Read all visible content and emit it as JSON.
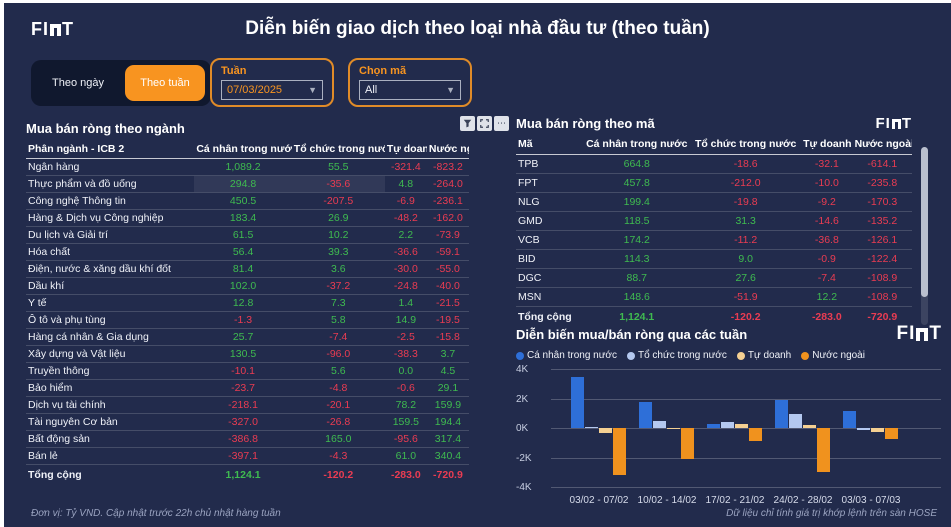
{
  "header": {
    "logo": "FIDT",
    "logo_left": "FI",
    "logo_right": "T",
    "title": "Diễn biến giao dịch theo loại nhà đầu tư (theo tuần)"
  },
  "controls": {
    "toggle_day": "Theo ngày",
    "toggle_week": "Theo tuần",
    "week_filter": {
      "label": "Tuần",
      "value": "07/03/2025"
    },
    "ticker_filter": {
      "label": "Chọn mã",
      "value": "All"
    }
  },
  "toolbar_icons": [
    "filter-icon",
    "focus-mode-icon",
    "more-options-icon"
  ],
  "sector_table": {
    "title": "Mua bán ròng theo ngành",
    "columns": [
      "Phân ngành - ICB 2",
      "Cá nhân trong nước",
      "Tổ chức trong nước",
      "Tự doanh",
      "Nước ngoài"
    ],
    "highlight_row_index": 1,
    "rows": [
      [
        "Ngân hàng",
        "1,089.2",
        "55.5",
        "-321.4",
        "-823.2"
      ],
      [
        "Thực phẩm và đồ uống",
        "294.8",
        "-35.6",
        "4.8",
        "-264.0"
      ],
      [
        "Công nghệ Thông tin",
        "450.5",
        "-207.5",
        "-6.9",
        "-236.1"
      ],
      [
        "Hàng & Dịch vụ Công nghiệp",
        "183.4",
        "26.9",
        "-48.2",
        "-162.0"
      ],
      [
        "Du lịch và Giải trí",
        "61.5",
        "10.2",
        "2.2",
        "-73.9"
      ],
      [
        "Hóa chất",
        "56.4",
        "39.3",
        "-36.6",
        "-59.1"
      ],
      [
        "Điện, nước & xăng dầu khí đốt",
        "81.4",
        "3.6",
        "-30.0",
        "-55.0"
      ],
      [
        "Dầu khí",
        "102.0",
        "-37.2",
        "-24.8",
        "-40.0"
      ],
      [
        "Y tế",
        "12.8",
        "7.3",
        "1.4",
        "-21.5"
      ],
      [
        "Ô tô và phụ tùng",
        "-1.3",
        "5.8",
        "14.9",
        "-19.5"
      ],
      [
        "Hàng cá nhân & Gia dụng",
        "25.7",
        "-7.4",
        "-2.5",
        "-15.8"
      ],
      [
        "Xây dựng và Vật liệu",
        "130.5",
        "-96.0",
        "-38.3",
        "3.7"
      ],
      [
        "Truyền thông",
        "-10.1",
        "5.6",
        "0.0",
        "4.5"
      ],
      [
        "Bảo hiểm",
        "-23.7",
        "-4.8",
        "-0.6",
        "29.1"
      ],
      [
        "Dịch vụ tài chính",
        "-218.1",
        "-20.1",
        "78.2",
        "159.9"
      ],
      [
        "Tài nguyên Cơ bản",
        "-327.0",
        "-26.8",
        "159.5",
        "194.4"
      ],
      [
        "Bất động sản",
        "-386.8",
        "165.0",
        "-95.6",
        "317.4"
      ],
      [
        "Bán lẻ",
        "-397.1",
        "-4.3",
        "61.0",
        "340.4"
      ]
    ],
    "total": [
      "Tổng cộng",
      "1,124.1",
      "-120.2",
      "-283.0",
      "-720.9"
    ]
  },
  "ticker_table": {
    "title": "Mua bán ròng theo mã",
    "columns": [
      "Mã",
      "Cá nhân trong nước",
      "Tổ chức trong nước",
      "Tự doanh",
      "Nước ngoài"
    ],
    "sorted_column": "Nước ngoài",
    "rows": [
      [
        "TPB",
        "664.8",
        "-18.6",
        "-32.1",
        "-614.1"
      ],
      [
        "FPT",
        "457.8",
        "-212.0",
        "-10.0",
        "-235.8"
      ],
      [
        "NLG",
        "199.4",
        "-19.8",
        "-9.2",
        "-170.3"
      ],
      [
        "GMD",
        "118.5",
        "31.3",
        "-14.6",
        "-135.2"
      ],
      [
        "VCB",
        "174.2",
        "-11.2",
        "-36.8",
        "-126.1"
      ],
      [
        "BID",
        "114.3",
        "9.0",
        "-0.9",
        "-122.4"
      ],
      [
        "DGC",
        "88.7",
        "27.6",
        "-7.4",
        "-108.9"
      ],
      [
        "MSN",
        "148.6",
        "-51.9",
        "12.2",
        "-108.9"
      ]
    ],
    "total": [
      "Tổng cộng",
      "1,124.1",
      "-120.2",
      "-283.0",
      "-720.9"
    ]
  },
  "chart_data": {
    "type": "bar",
    "title": "Diễn biến mua/bán ròng qua các tuần",
    "categories": [
      "03/02 - 07/02",
      "10/02 - 14/02",
      "17/02 - 21/02",
      "24/02 - 28/02",
      "03/03 - 07/03"
    ],
    "series": [
      {
        "name": "Cá nhân trong nước",
        "color": "#2e6fd8",
        "values": [
          3450,
          1750,
          270,
          1900,
          1124
        ]
      },
      {
        "name": "Tổ chức trong nước",
        "color": "#b4c8ef",
        "values": [
          80,
          450,
          400,
          950,
          -120
        ]
      },
      {
        "name": "Tự doanh",
        "color": "#f5d092",
        "values": [
          -340,
          -60,
          250,
          190,
          -283
        ]
      },
      {
        "name": "Nước ngoài",
        "color": "#f0921e",
        "values": [
          -3180,
          -2100,
          -880,
          -3000,
          -721
        ]
      }
    ],
    "y_ticks": [
      "4K",
      "2K",
      "0K",
      "-2K",
      "-4K"
    ],
    "ylim": [
      -4000,
      4000
    ],
    "grid": true,
    "legend_position": "top"
  },
  "footer": {
    "left": "Đơn vị: Tỷ VND. Cập nhật trước 22h chủ nhật hàng tuần",
    "right": "Dữ liệu chỉ tính giá trị khớp lệnh trên sàn HOSE"
  },
  "colors": {
    "background": "#222b4c",
    "accent_orange": "#f89420",
    "positive_green": "#3fbb50",
    "negative_red": "#ea3c52"
  }
}
